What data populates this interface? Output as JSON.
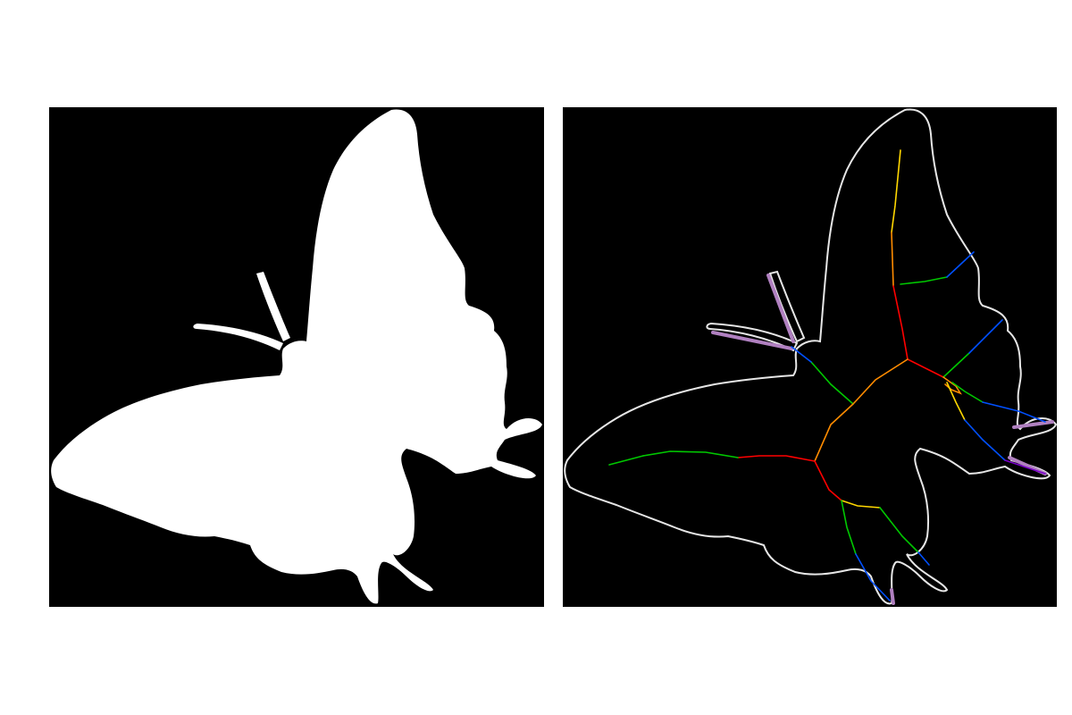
{
  "figure": {
    "background": "#ffffff",
    "panels": [
      {
        "id": "silhouette",
        "description_kind": "binary-mask",
        "background": "#000000",
        "fill": "#ffffff"
      },
      {
        "id": "skeleton",
        "description_kind": "contour-and-medial-axis",
        "background": "#000000",
        "contour_color": "#e6e6e6",
        "skeleton_colors": [
          "#ff0000",
          "#ff8c00",
          "#ffd700",
          "#00c800",
          "#0050ff",
          "#7a00c8",
          "#b080c0"
        ]
      }
    ]
  }
}
